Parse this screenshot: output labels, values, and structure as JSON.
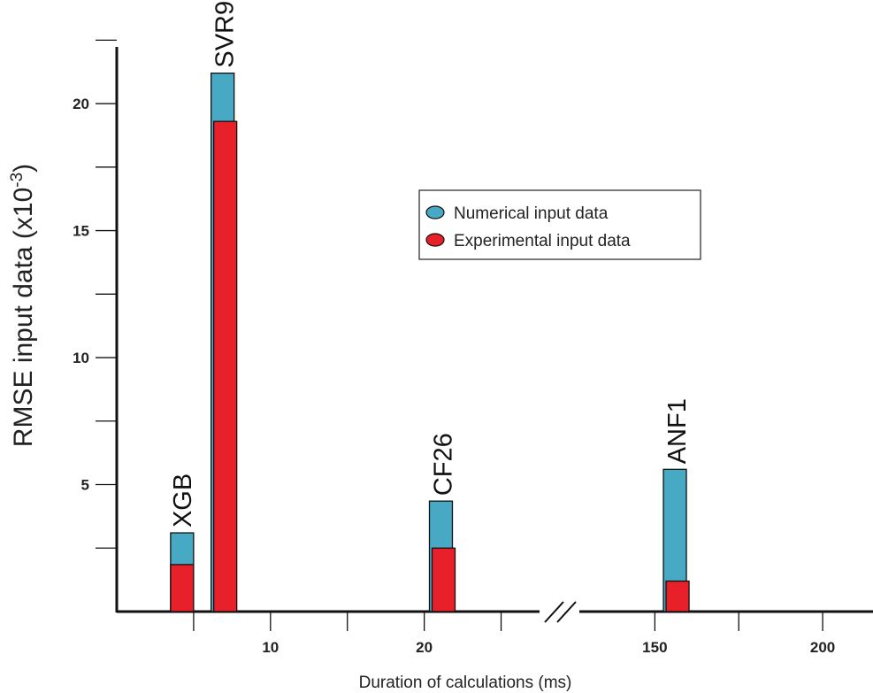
{
  "chart_data": {
    "type": "bar",
    "ylabel": "RMSE input data (x10",
    "ylabel_sup": "-3",
    "ylabel_close": ")",
    "xlabel": "Duration of calculations (ms)",
    "ylim": [
      0,
      23
    ],
    "yticks_major": [
      5,
      10,
      15,
      20
    ],
    "yticks_minor": [
      2.5,
      7.5,
      12.5,
      17.5,
      22.5
    ],
    "x_segments": [
      {
        "range": [
          0,
          27.5
        ],
        "ticks": [
          10,
          20
        ],
        "minor_ticks": [
          5,
          15,
          25
        ]
      },
      {
        "range": [
          127.5,
          215
        ],
        "ticks": [
          150,
          200
        ],
        "minor_ticks": [
          175
        ]
      }
    ],
    "axis_break": true,
    "grid": false,
    "legend_position": "top-right",
    "series": [
      {
        "name": "Numerical input data",
        "color": "#48a9c5"
      },
      {
        "name": "Experimental input data",
        "color": "#e8202a"
      }
    ],
    "bars": [
      {
        "label": "XGB",
        "x": 4.25,
        "numerical": 3.1,
        "experimental": 1.85
      },
      {
        "label": "SVR9",
        "x": 7.0,
        "numerical": 21.2,
        "experimental": 19.3
      },
      {
        "label": "CF26",
        "x": 21.2,
        "numerical": 4.35,
        "experimental": 2.5
      },
      {
        "label": "ANF1",
        "x": 156.5,
        "numerical": 5.6,
        "experimental": 1.2
      }
    ]
  }
}
